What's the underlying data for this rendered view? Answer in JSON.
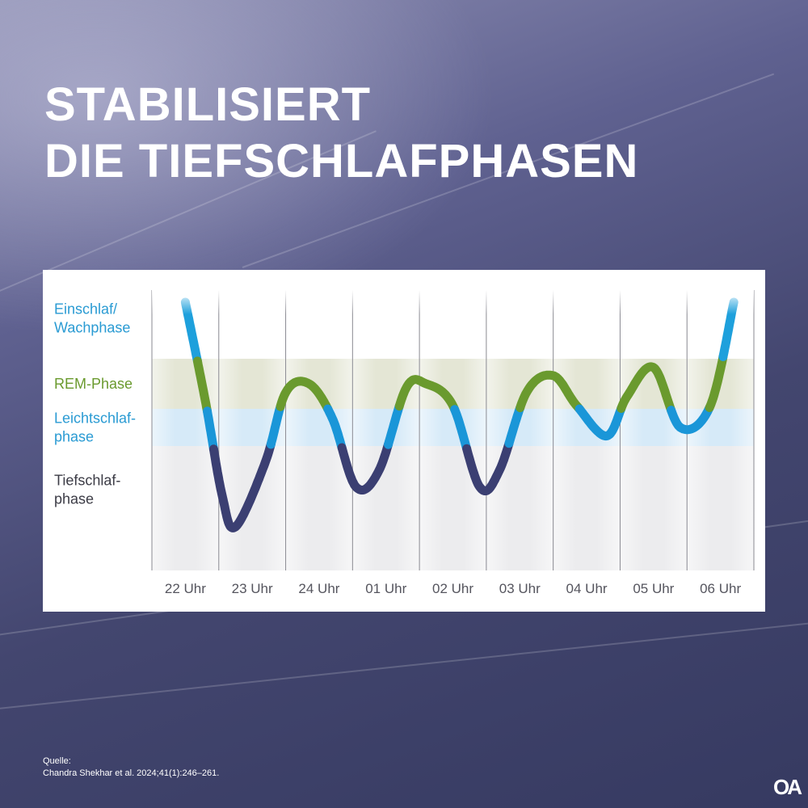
{
  "title": {
    "line1": "STABILISIERT",
    "line2": "DIE TIEFSCHLAFPHASEN"
  },
  "source": {
    "label": "Quelle:",
    "citation": "Chandra Shekhar et al. 2024;41(1):246–261."
  },
  "logo": "OA",
  "chart_data": {
    "type": "line",
    "x_ticks": [
      "22 Uhr",
      "23 Uhr",
      "24 Uhr",
      "01 Uhr",
      "02 Uhr",
      "03 Uhr",
      "04 Uhr",
      "05 Uhr",
      "06 Uhr"
    ],
    "y_categories": [
      "Einschlaf/ Wachphase",
      "REM-Phase",
      "Leichtschlaf- phase",
      "Tiefschlaf- phase"
    ],
    "y_category_lines": [
      [
        "Einschlaf/",
        "Wachphase"
      ],
      [
        "REM-Phase"
      ],
      [
        "Leichtschlaf-",
        "phase"
      ],
      [
        "Tiefschlaf-",
        "phase"
      ]
    ],
    "y_scale": "0 = Tiefschlafphase (deepest), 1 = Leichtschlafphase, 2 = REM-Phase, 3 = Einschlaf/Wachphase",
    "series": [
      {
        "x": [
          0.0,
          0.3,
          0.55,
          0.75,
          1.2,
          1.5,
          1.85,
          2.2,
          2.55,
          2.9,
          3.3,
          3.6,
          4.0,
          4.4,
          4.7,
          5.1,
          5.5,
          5.85,
          6.3,
          6.6,
          7.0,
          7.4,
          7.85,
          8.2
        ],
        "y": [
          3.0,
          1.6,
          0.2,
          -0.2,
          0.6,
          1.8,
          2.0,
          1.2,
          0.3,
          0.5,
          1.9,
          2.0,
          1.5,
          0.3,
          0.5,
          1.8,
          2.1,
          1.5,
          0.9,
          1.7,
          2.2,
          1.0,
          1.5,
          3.0
        ]
      }
    ],
    "band_colors": {
      "Einschlaf/Wachphase": "#ffffff",
      "REM-Phase": "#e4e6d5",
      "Leichtschlafphase": "#d6eaf8",
      "Tiefschlafphase": "#ececee"
    },
    "line_colors": {
      "Einschlaf/Wachphase": "#1ea0dc",
      "REM-Phase": "#6a9a2e",
      "Leichtschlafphase": "#1a96d8",
      "Tiefschlafphase": "#3b3f72"
    },
    "label_colors": {
      "Einschlaf/Wachphase": "#2a9bd3",
      "REM-Phase": "#6a9a2e",
      "Leichtschlafphase": "#2a9bd3",
      "Tiefschlafphase": "#3c3c46"
    },
    "grid": true
  }
}
